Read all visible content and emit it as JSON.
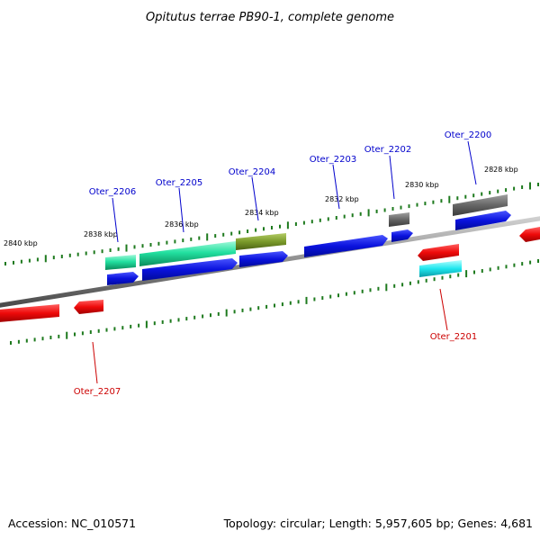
{
  "title": "Opitutus terrae PB90-1, complete genome",
  "footer": {
    "accession": "Accession: NC_010571",
    "summary": "Topology: circular; Length: 5,957,605 bp; Genes: 4,681"
  },
  "colors": {
    "backbone": "#8c8c8c",
    "tick": "#1e7a1e",
    "forward_label": "#0000cc",
    "reverse_label": "#cc0000",
    "blue_cds": "#0a12dd",
    "red_cds": "#ee0a0a",
    "teal_gene": "#22e0a0",
    "olive_gene": "#7a9a2a",
    "gray_gene": "#666666",
    "cyan_gene": "#1ee6ee"
  },
  "kbp_labels": [
    "2828 kbp",
    "2830 kbp",
    "2832 kbp",
    "2834 kbp",
    "2836 kbp",
    "2838 kbp",
    "2840 kbp"
  ],
  "gene_labels": {
    "forward": [
      "Oter_2200",
      "Oter_2202",
      "Oter_2203",
      "Oter_2204",
      "Oter_2205",
      "Oter_2206"
    ],
    "reverse": [
      "Oter_2201",
      "Oter_2207"
    ]
  }
}
